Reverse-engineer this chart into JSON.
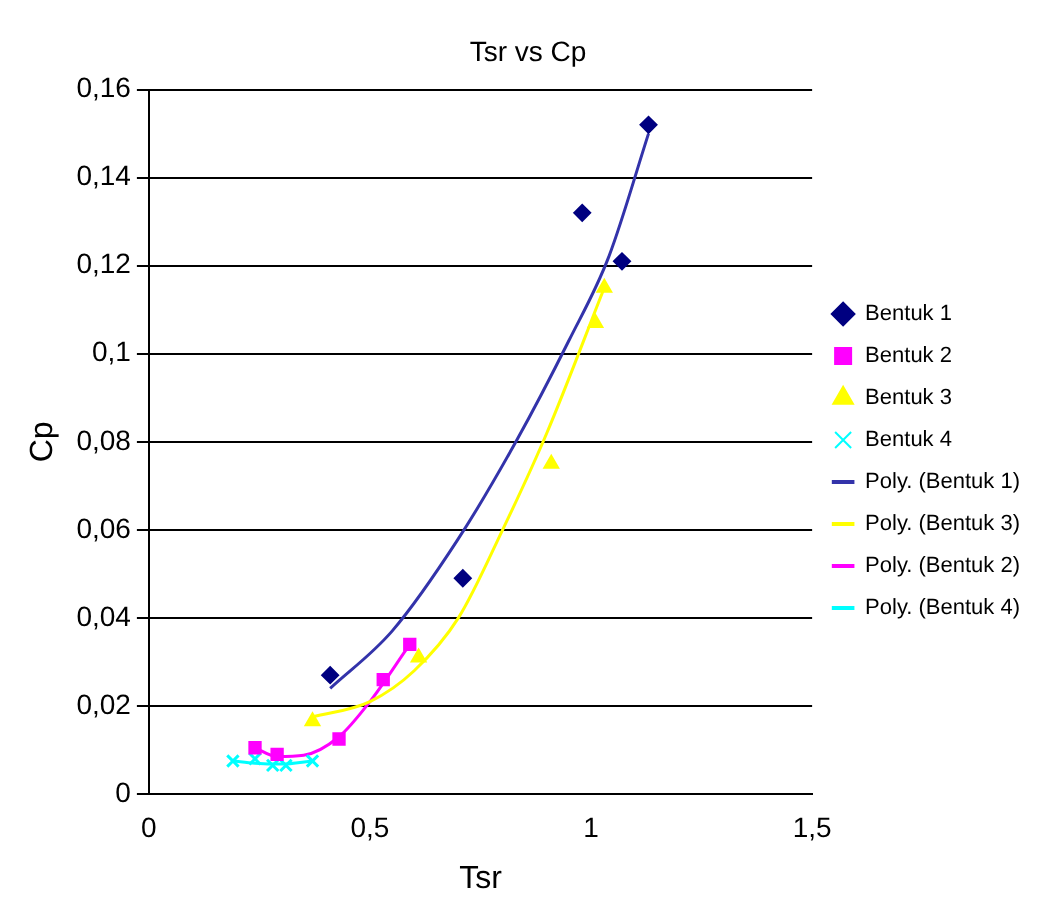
{
  "chart_data": {
    "type": "scatter",
    "title": "Tsr vs Cp",
    "xlabel": "Tsr",
    "ylabel": "Cp",
    "xlim": [
      0,
      1.5
    ],
    "xticks": [
      0,
      {
        "value": 0.5,
        "label": "0,5"
      },
      1,
      {
        "value": 1.5,
        "label": "1,5"
      }
    ],
    "ylim": [
      0,
      0.16
    ],
    "yticks": [
      0,
      {
        "value": 0.02,
        "label": "0,02"
      },
      {
        "value": 0.04,
        "label": "0,04"
      },
      {
        "value": 0.06,
        "label": "0,06"
      },
      {
        "value": 0.08,
        "label": "0,08"
      },
      {
        "value": 0.1,
        "label": "0,1"
      },
      {
        "value": 0.12,
        "label": "0,12"
      },
      {
        "value": 0.14,
        "label": "0,14"
      },
      {
        "value": 0.16,
        "label": "0,16"
      }
    ],
    "grid": "y",
    "legend": "right",
    "series": [
      {
        "name": "Bentuk 1",
        "type": "scatter",
        "marker": "diamond",
        "color": "#000080",
        "x": [
          0.41,
          0.71,
          0.98,
          1.07,
          1.13
        ],
        "values": [
          0.027,
          0.049,
          0.132,
          0.121,
          0.152
        ]
      },
      {
        "name": "Bentuk 2",
        "type": "scatter",
        "marker": "square",
        "color": "#ff00ff",
        "x": [
          0.24,
          0.29,
          0.43,
          0.53,
          0.59
        ],
        "values": [
          0.0105,
          0.009,
          0.0125,
          0.026,
          0.034
        ]
      },
      {
        "name": "Bentuk 3",
        "type": "scatter",
        "marker": "triangle",
        "color": "#ffff00",
        "x": [
          0.37,
          0.61,
          0.91,
          1.01,
          1.03
        ],
        "values": [
          0.0165,
          0.031,
          0.075,
          0.107,
          0.115
        ]
      },
      {
        "name": "Bentuk 4",
        "type": "scatter",
        "marker": "cross",
        "color": "#00ffff",
        "x": [
          0.19,
          0.24,
          0.28,
          0.31,
          0.37
        ],
        "values": [
          0.0075,
          0.008,
          0.0065,
          0.0065,
          0.0075
        ]
      },
      {
        "name": "Poly. (Bentuk 1)",
        "type": "line",
        "marker": "none",
        "color": "#3333aa",
        "x": [
          0.41,
          0.55,
          0.7,
          0.83,
          0.95,
          1.04,
          1.13
        ],
        "values": [
          0.024,
          0.037,
          0.058,
          0.08,
          0.103,
          0.122,
          0.15
        ]
      },
      {
        "name": "Poly. (Bentuk 3)",
        "type": "line",
        "marker": "none",
        "color": "#ffff00",
        "x": [
          0.37,
          0.5,
          0.6,
          0.7,
          0.8,
          0.9,
          1.03
        ],
        "values": [
          0.0175,
          0.021,
          0.028,
          0.04,
          0.06,
          0.082,
          0.115
        ]
      },
      {
        "name": "Poly. (Bentuk 2)",
        "type": "line",
        "marker": "none",
        "color": "#ff00ff",
        "x": [
          0.24,
          0.29,
          0.35,
          0.43,
          0.5,
          0.59
        ],
        "values": [
          0.0105,
          0.0085,
          0.0088,
          0.013,
          0.021,
          0.034
        ]
      },
      {
        "name": "Poly. (Bentuk 4)",
        "type": "line",
        "marker": "none",
        "color": "#00ffff",
        "x": [
          0.19,
          0.24,
          0.3,
          0.37
        ],
        "values": [
          0.0075,
          0.007,
          0.0068,
          0.0075
        ]
      }
    ]
  }
}
